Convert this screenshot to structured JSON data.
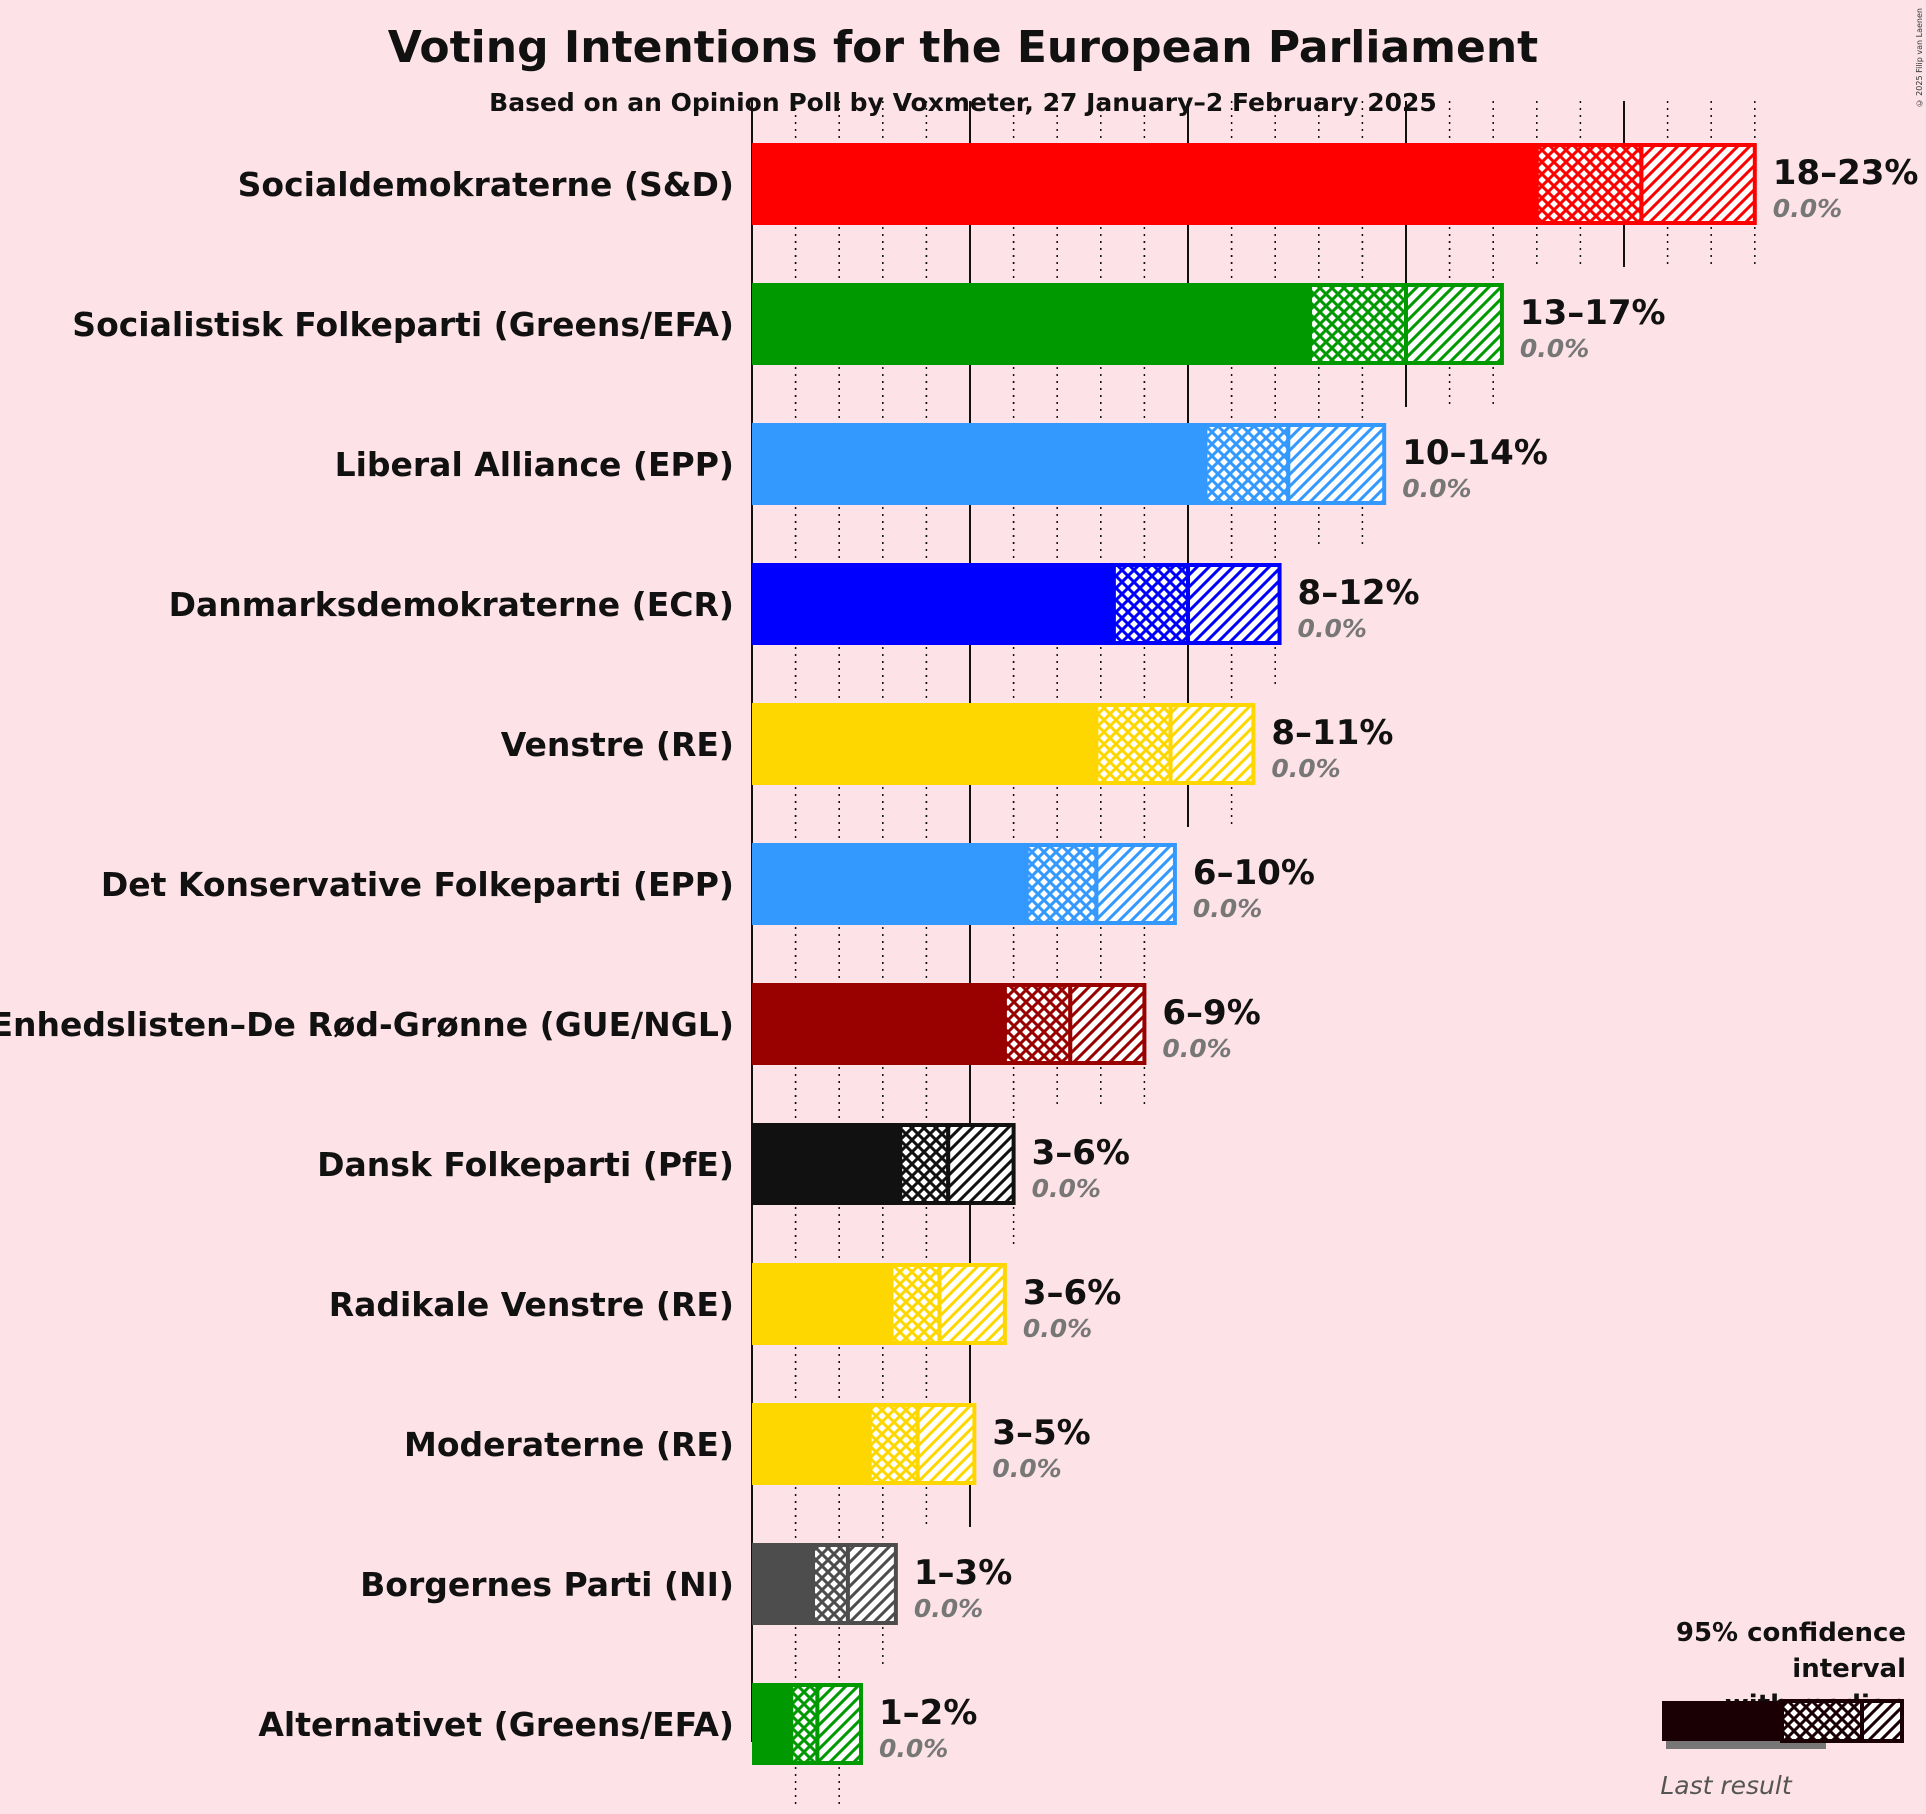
{
  "title": "Voting Intentions for the European Parliament",
  "subtitle": "Based on an Opinion Poll by Voxmeter, 27 January–2 February 2025",
  "copyright": "© 2025 Filip van Laenen",
  "legend": {
    "title_line1": "95% confidence interval",
    "title_line2": "with median",
    "last_result": "Last result"
  },
  "chart_data": {
    "type": "bar",
    "orientation": "horizontal",
    "title": "Voting Intentions for the European Parliament",
    "x_unit": "%",
    "grid": true,
    "series_fields": [
      "ci_low",
      "q_low",
      "median",
      "ci_high",
      "last_result"
    ],
    "parties": [
      {
        "name": "Socialdemokraterne (S&D)",
        "label": "18–23%",
        "last_label": "0.0%",
        "color": "#ff0000",
        "ci_low": 18.0,
        "median": 20.4,
        "ci_high": 23.0,
        "last_result": 0.0
      },
      {
        "name": "Socialistisk Folkeparti (Greens/EFA)",
        "label": "13–17%",
        "last_label": "0.0%",
        "color": "#009900",
        "ci_low": 12.8,
        "median": 15.0,
        "ci_high": 17.2,
        "last_result": 0.0
      },
      {
        "name": "Liberal Alliance (EPP)",
        "label": "10–14%",
        "last_label": "0.0%",
        "color": "#3399ff",
        "ci_low": 10.4,
        "median": 12.3,
        "ci_high": 14.5,
        "last_result": 0.0
      },
      {
        "name": "Danmarksdemokraterne (ECR)",
        "label": "8–12%",
        "last_label": "0.0%",
        "color": "#0000ff",
        "ci_low": 8.3,
        "median": 10.0,
        "ci_high": 12.1,
        "last_result": 0.0
      },
      {
        "name": "Venstre (RE)",
        "label": "8–11%",
        "last_label": "0.0%",
        "color": "#ffd700",
        "ci_low": 7.9,
        "median": 9.6,
        "ci_high": 11.5,
        "last_result": 0.0
      },
      {
        "name": "Det Konservative Folkeparti (EPP)",
        "label": "6–10%",
        "last_label": "0.0%",
        "color": "#3399ff",
        "ci_low": 6.3,
        "median": 7.9,
        "ci_high": 9.7,
        "last_result": 0.0
      },
      {
        "name": "Enhedslisten–De Rød-Grønne (GUE/NGL)",
        "label": "6–9%",
        "last_label": "0.0%",
        "color": "#990000",
        "ci_low": 5.8,
        "median": 7.3,
        "ci_high": 9.0,
        "last_result": 0.0
      },
      {
        "name": "Dansk Folkeparti (PfE)",
        "label": "3–6%",
        "last_label": "0.0%",
        "color": "#111111",
        "ci_low": 3.4,
        "median": 4.5,
        "ci_high": 6.0,
        "last_result": 0.0
      },
      {
        "name": "Radikale Venstre (RE)",
        "label": "3–6%",
        "last_label": "0.0%",
        "color": "#ffd700",
        "ci_low": 3.2,
        "median": 4.3,
        "ci_high": 5.8,
        "last_result": 0.0
      },
      {
        "name": "Moderaterne (RE)",
        "label": "3–5%",
        "last_label": "0.0%",
        "color": "#ffd700",
        "ci_low": 2.7,
        "median": 3.8,
        "ci_high": 5.1,
        "last_result": 0.0
      },
      {
        "name": "Borgernes Parti (NI)",
        "label": "1–3%",
        "last_label": "0.0%",
        "color": "#4d4d4d",
        "ci_low": 1.4,
        "median": 2.2,
        "ci_high": 3.3,
        "last_result": 0.0
      },
      {
        "name": "Alternativet (Greens/EFA)",
        "label": "1–2%",
        "last_label": "0.0%",
        "color": "#009900",
        "ci_low": 0.9,
        "median": 1.5,
        "ci_high": 2.5,
        "last_result": 0.0
      }
    ]
  }
}
